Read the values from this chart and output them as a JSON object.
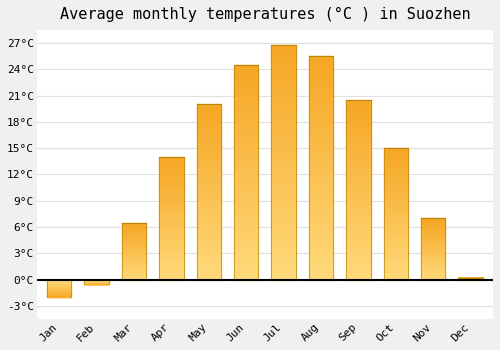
{
  "title": "Average monthly temperatures (°C ) in Suozhen",
  "months": [
    "Jan",
    "Feb",
    "Mar",
    "Apr",
    "May",
    "Jun",
    "Jul",
    "Aug",
    "Sep",
    "Oct",
    "Nov",
    "Dec"
  ],
  "values": [
    -2.0,
    -0.5,
    6.5,
    14.0,
    20.0,
    24.5,
    26.8,
    25.5,
    20.5,
    15.0,
    7.0,
    0.2
  ],
  "bar_color_top": "#F5A623",
  "bar_color_bottom": "#FFD97A",
  "bar_edge_color": "#B8860B",
  "yticks": [
    -3,
    0,
    3,
    6,
    9,
    12,
    15,
    18,
    21,
    24,
    27
  ],
  "ylim": [
    -4.5,
    28.5
  ],
  "background_color": "#f0f0f0",
  "plot_bg_color": "#ffffff",
  "grid_color": "#e0e0e0",
  "zero_line_color": "#000000",
  "title_fontsize": 11,
  "tick_fontsize": 8,
  "bar_width": 0.65
}
